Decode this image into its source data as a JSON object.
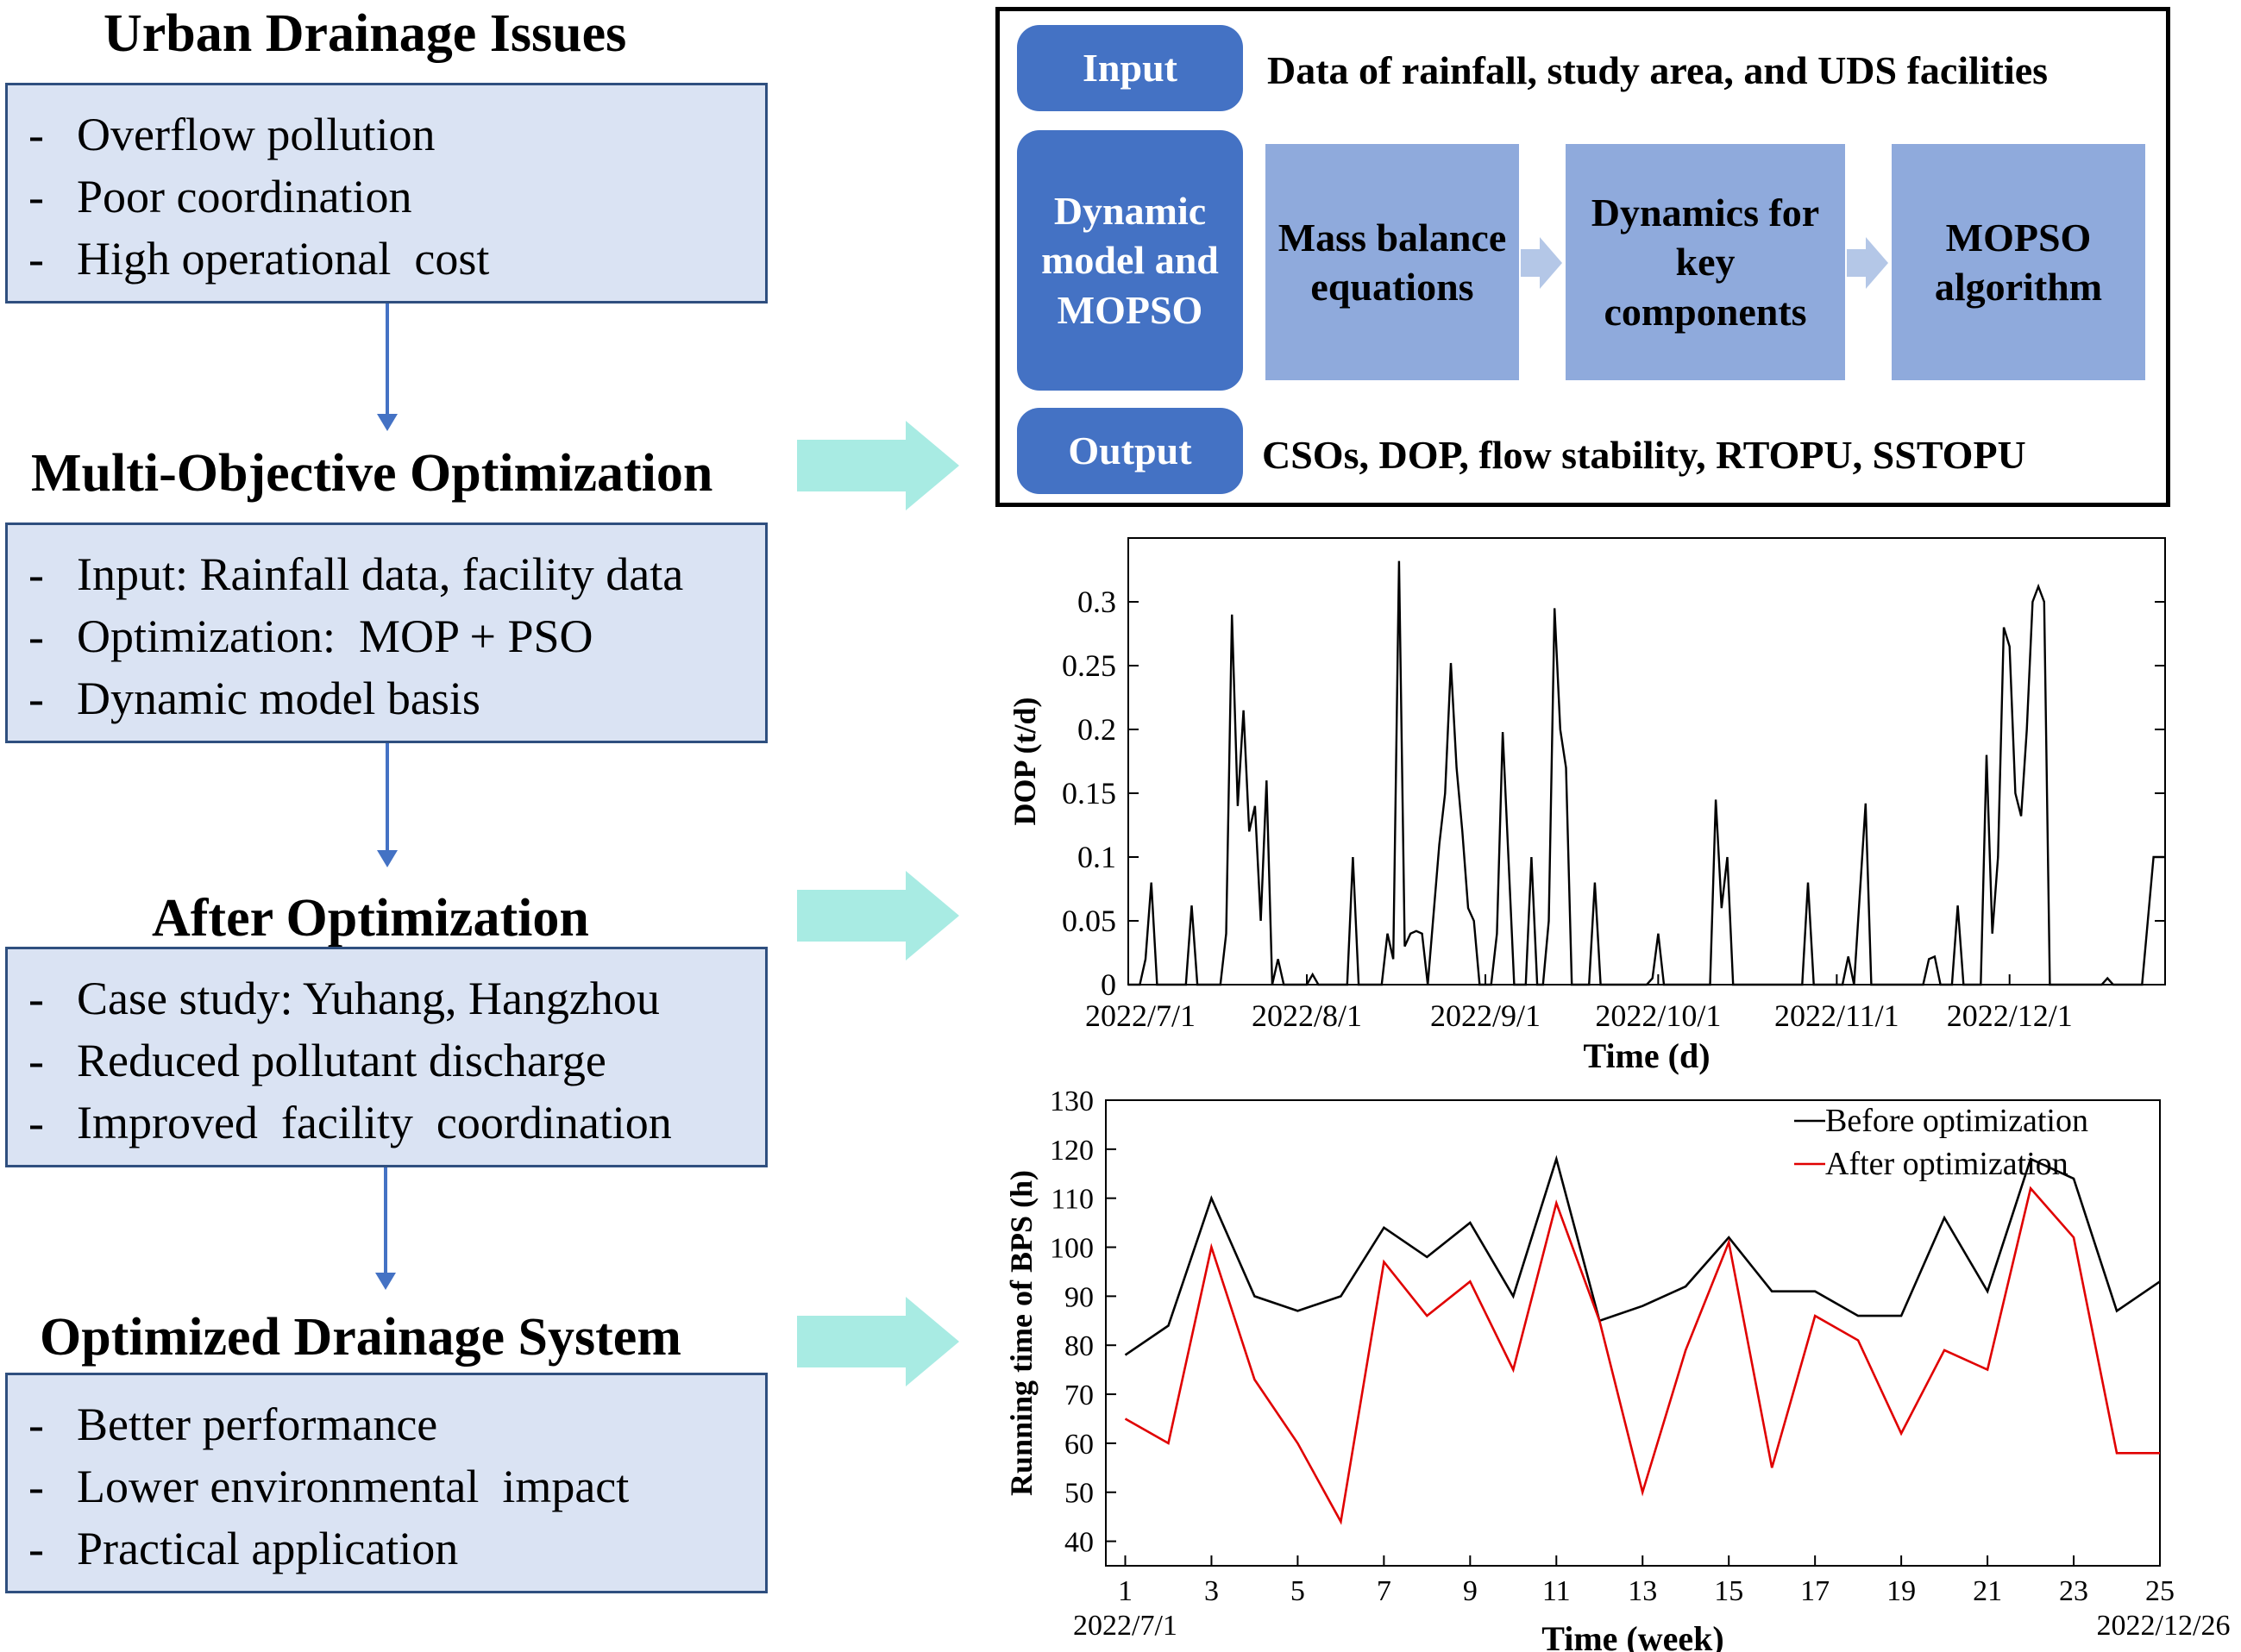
{
  "sections": [
    {
      "title": "Urban Drainage Issues",
      "items": [
        "Overflow pollution",
        "Poor coordination",
        "High operational  cost"
      ]
    },
    {
      "title": "Multi-Objective Optimization",
      "items": [
        "Input: Rainfall data, facility data",
        "Optimization:  MOP + PSO",
        "Dynamic model basis"
      ]
    },
    {
      "title": "After Optimization",
      "items": [
        "Case study: Yuhang, Hangzhou",
        "Reduced pollutant discharge",
        "Improved  facility  coordination"
      ]
    },
    {
      "title": "Optimized Drainage System",
      "items": [
        "Better performance",
        "Lower environmental  impact",
        "Practical application"
      ]
    }
  ],
  "flowchart": {
    "input_label": "Input",
    "input_text": "Data of rainfall, study area, and UDS facilities",
    "model_label": "Dynamic model and MOPSO",
    "steps": [
      "Mass balance equations",
      "Dynamics for key components",
      "MOPSO algorithm"
    ],
    "output_label": "Output",
    "output_text": "CSOs, DOP, flow stability, RTOPU, SSTOPU"
  },
  "colors": {
    "box_fill": "#dae3f3",
    "pill": "#4472c4",
    "step": "#8faadc",
    "arrow_teal": "#a8ebe3",
    "arrow_blue": "#4472c4",
    "before": "#000000",
    "after": "#e00000"
  },
  "chart_data": [
    {
      "type": "line",
      "title": "",
      "xlabel": "Time (d)",
      "ylabel": "DOP (t/d)",
      "ylim": [
        0,
        0.35
      ],
      "yticks": [
        0,
        0.05,
        0.1,
        0.15,
        0.2,
        0.25,
        0.3
      ],
      "ytick_labels": [
        "0",
        "0.05",
        "0.1",
        "0.15",
        "0.2",
        "0.25",
        "0.3"
      ],
      "xlim": [
        0,
        180
      ],
      "xticks": [
        {
          "day": 0,
          "label": "2022/7/1"
        },
        {
          "day": 31,
          "label": "2022/8/1"
        },
        {
          "day": 62,
          "label": "2022/9/1"
        },
        {
          "day": 92,
          "label": "2022/10/1"
        },
        {
          "day": 123,
          "label": "2022/11/1"
        },
        {
          "day": 153,
          "label": "2022/12/1"
        }
      ],
      "series": [
        {
          "name": "DOP",
          "points": [
            [
              0,
              0
            ],
            [
              2,
              0
            ],
            [
              3,
              0.02
            ],
            [
              4,
              0.08
            ],
            [
              5,
              0
            ],
            [
              10,
              0
            ],
            [
              11,
              0.062
            ],
            [
              12,
              0
            ],
            [
              16,
              0
            ],
            [
              17,
              0.04
            ],
            [
              18,
              0.29
            ],
            [
              19,
              0.14
            ],
            [
              20,
              0.215
            ],
            [
              21,
              0.12
            ],
            [
              22,
              0.14
            ],
            [
              23,
              0.05
            ],
            [
              24,
              0.16
            ],
            [
              25,
              0
            ],
            [
              26,
              0.02
            ],
            [
              27,
              0
            ],
            [
              31,
              0
            ],
            [
              32,
              0.008
            ],
            [
              33,
              0
            ],
            [
              38,
              0
            ],
            [
              39,
              0.1
            ],
            [
              40,
              0
            ],
            [
              44,
              0
            ],
            [
              45,
              0.04
            ],
            [
              46,
              0.02
            ],
            [
              47,
              0.332
            ],
            [
              48,
              0.03
            ],
            [
              49,
              0.04
            ],
            [
              50,
              0.042
            ],
            [
              51,
              0.04
            ],
            [
              52,
              0
            ],
            [
              54,
              0.11
            ],
            [
              55,
              0.15
            ],
            [
              56,
              0.252
            ],
            [
              57,
              0.17
            ],
            [
              58,
              0.12
            ],
            [
              59,
              0.06
            ],
            [
              60,
              0.05
            ],
            [
              61,
              0
            ],
            [
              63,
              0
            ],
            [
              64,
              0.04
            ],
            [
              65,
              0.198
            ],
            [
              66,
              0.1
            ],
            [
              67,
              0
            ],
            [
              69,
              0
            ],
            [
              70,
              0.1
            ],
            [
              71,
              0
            ],
            [
              72,
              0
            ],
            [
              73,
              0.05
            ],
            [
              74,
              0.295
            ],
            [
              75,
              0.2
            ],
            [
              76,
              0.17
            ],
            [
              77,
              0
            ],
            [
              80,
              0
            ],
            [
              81,
              0.08
            ],
            [
              82,
              0
            ],
            [
              90,
              0
            ],
            [
              91,
              0.005
            ],
            [
              92,
              0.04
            ],
            [
              93,
              0
            ],
            [
              97,
              0
            ],
            [
              98,
              0
            ],
            [
              101,
              0
            ],
            [
              102,
              0.145
            ],
            [
              103,
              0.06
            ],
            [
              104,
              0.1
            ],
            [
              105,
              0
            ],
            [
              108,
              0
            ],
            [
              109,
              0
            ],
            [
              117,
              0
            ],
            [
              118,
              0.08
            ],
            [
              119,
              0
            ],
            [
              124,
              0
            ],
            [
              125,
              0.022
            ],
            [
              126,
              0
            ],
            [
              128,
              0.142
            ],
            [
              129,
              0
            ],
            [
              134,
              0
            ],
            [
              138,
              0
            ],
            [
              139,
              0.02
            ],
            [
              140,
              0.022
            ],
            [
              141,
              0
            ],
            [
              143,
              0
            ],
            [
              144,
              0.062
            ],
            [
              145,
              0
            ],
            [
              148,
              0
            ],
            [
              149,
              0.18
            ],
            [
              150,
              0.04
            ],
            [
              151,
              0.1
            ],
            [
              152,
              0.28
            ],
            [
              153,
              0.265
            ],
            [
              154,
              0.15
            ],
            [
              155,
              0.132
            ],
            [
              156,
              0.2
            ],
            [
              157,
              0.3
            ],
            [
              158,
              0.312
            ],
            [
              159,
              0.3
            ],
            [
              160,
              0
            ],
            [
              169,
              0
            ],
            [
              170,
              0.005
            ],
            [
              171,
              0
            ],
            [
              176,
              0
            ],
            [
              178,
              0.1
            ],
            [
              179,
              0.1
            ],
            [
              180,
              0.1
            ]
          ]
        }
      ]
    },
    {
      "type": "line",
      "title": "",
      "xlabel": "Time (week)",
      "ylabel": "Running time of BPS (h)",
      "ylim": [
        35,
        130
      ],
      "yticks": [
        40,
        50,
        60,
        70,
        80,
        90,
        100,
        110,
        120,
        130
      ],
      "x": [
        1,
        2,
        3,
        4,
        5,
        6,
        7,
        8,
        9,
        10,
        11,
        12,
        13,
        14,
        15,
        16,
        17,
        18,
        19,
        20,
        21,
        22,
        23,
        24,
        25
      ],
      "xticks": [
        1,
        3,
        5,
        7,
        9,
        11,
        13,
        15,
        17,
        19,
        21,
        23,
        25
      ],
      "x_start_label": "2022/7/1",
      "x_end_label": "2022/12/26",
      "legend_position": "top-right",
      "series": [
        {
          "name": "Before optimization",
          "values": [
            78,
            84,
            110,
            90,
            87,
            90,
            104,
            98,
            105,
            90,
            118,
            85,
            88,
            92,
            102,
            91,
            91,
            86,
            86,
            106,
            91,
            118,
            114,
            87,
            93
          ]
        },
        {
          "name": "After optimization",
          "values": [
            65,
            60,
            100,
            73,
            60,
            44,
            97,
            86,
            93,
            75,
            109,
            85,
            50,
            79,
            101,
            55,
            86,
            81,
            62,
            79,
            75,
            112,
            102,
            58,
            58
          ]
        }
      ]
    }
  ]
}
